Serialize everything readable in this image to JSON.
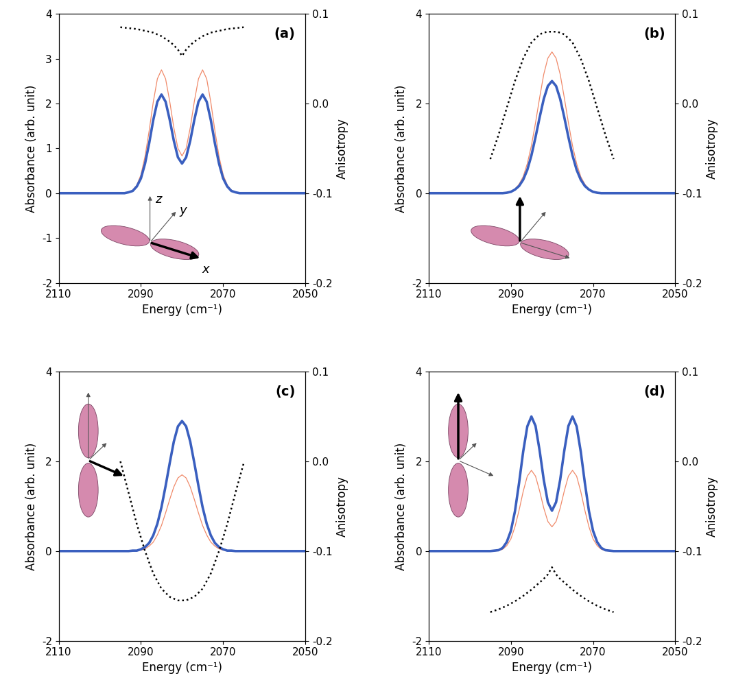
{
  "chart_data": [
    {
      "type": "line",
      "title": "(a)",
      "xlabel": "Energy (cm⁻¹)",
      "ylabel": "Absorbance (arb. unit)",
      "y2label": "Anisotropy",
      "xlim": [
        2110,
        2050
      ],
      "xticks": [
        2110,
        2090,
        2070,
        2050
      ],
      "ylim": [
        -2,
        4
      ],
      "yticks": [
        -2,
        -1,
        0,
        1,
        2,
        3,
        4
      ],
      "y2lim": [
        -0.2,
        0.1
      ],
      "y2ticks": [
        -0.2,
        -0.1,
        0.0,
        0.1
      ],
      "annotations": [
        "z",
        "y",
        "x"
      ],
      "series": [
        {
          "color": "#f08a6a",
          "line_style": "solid",
          "x": [
            2110,
            2096,
            2095,
            2094,
            2093,
            2092,
            2091,
            2090,
            2089,
            2088,
            2087,
            2086,
            2085,
            2084,
            2083,
            2082,
            2081,
            2080,
            2079,
            2078,
            2077,
            2076,
            2075,
            2074,
            2073,
            2072,
            2071,
            2070,
            2069,
            2068,
            2067,
            2066,
            2065,
            2064,
            2050
          ],
          "values": [
            0,
            0,
            0,
            0.01,
            0.02,
            0.07,
            0.18,
            0.41,
            0.82,
            1.39,
            2.03,
            2.55,
            2.75,
            2.55,
            2.05,
            1.46,
            1.0,
            0.83,
            1.0,
            1.46,
            2.05,
            2.55,
            2.75,
            2.55,
            2.03,
            1.39,
            0.82,
            0.41,
            0.18,
            0.07,
            0.02,
            0.01,
            0,
            0,
            0
          ]
        },
        {
          "color": "#3a5fbf",
          "line_style": "solid",
          "x": [
            2110,
            2096,
            2095,
            2094,
            2093,
            2092,
            2091,
            2090,
            2089,
            2088,
            2087,
            2086,
            2085,
            2084,
            2083,
            2082,
            2081,
            2080,
            2079,
            2078,
            2077,
            2076,
            2075,
            2074,
            2073,
            2072,
            2071,
            2070,
            2069,
            2068,
            2067,
            2066,
            2065,
            2064,
            2050
          ],
          "values": [
            0,
            0,
            0,
            0,
            0.02,
            0.05,
            0.15,
            0.33,
            0.66,
            1.11,
            1.63,
            2.04,
            2.2,
            2.04,
            1.64,
            1.17,
            0.8,
            0.66,
            0.8,
            1.17,
            1.64,
            2.04,
            2.2,
            2.04,
            1.63,
            1.11,
            0.66,
            0.33,
            0.15,
            0.05,
            0.02,
            0,
            0,
            0,
            0
          ]
        },
        {
          "color": "#000000",
          "line_style": "dotted",
          "axis": "y2",
          "x": [
            2095,
            2093,
            2091,
            2089,
            2087,
            2085,
            2083,
            2082,
            2081,
            2080,
            2079,
            2078,
            2077,
            2075,
            2073,
            2071,
            2069,
            2067,
            2065
          ],
          "values": [
            0.085,
            0.084,
            0.083,
            0.081,
            0.079,
            0.075,
            0.069,
            0.065,
            0.06,
            0.053,
            0.06,
            0.065,
            0.069,
            0.075,
            0.079,
            0.081,
            0.083,
            0.084,
            0.085
          ]
        }
      ]
    },
    {
      "type": "line",
      "title": "(b)",
      "xlabel": "Energy (cm⁻¹)",
      "ylabel": "Absorbance (arb. unit)",
      "y2label": "Anisotropy",
      "xlim": [
        2110,
        2050
      ],
      "xticks": [
        2110,
        2090,
        2070,
        2050
      ],
      "ylim": [
        -2,
        4
      ],
      "yticks": [
        -2,
        0,
        2,
        4
      ],
      "y2lim": [
        -0.2,
        0.1
      ],
      "y2ticks": [
        -0.2,
        -0.1,
        0.0,
        0.1
      ],
      "series": [
        {
          "color": "#f08a6a",
          "line_style": "solid",
          "x": [
            2110,
            2096,
            2095,
            2094,
            2093,
            2092,
            2091,
            2090,
            2089,
            2088,
            2087,
            2086,
            2085,
            2084,
            2083,
            2082,
            2081,
            2080,
            2079,
            2078,
            2077,
            2076,
            2075,
            2074,
            2073,
            2072,
            2071,
            2070,
            2069,
            2068,
            2067,
            2066,
            2065,
            2064,
            2050
          ],
          "values": [
            0,
            0,
            0,
            0,
            0,
            0.01,
            0.02,
            0.04,
            0.09,
            0.2,
            0.37,
            0.66,
            1.06,
            1.57,
            2.13,
            2.65,
            3.01,
            3.15,
            3.01,
            2.65,
            2.13,
            1.57,
            1.06,
            0.66,
            0.37,
            0.2,
            0.09,
            0.04,
            0.02,
            0.01,
            0,
            0,
            0,
            0,
            0
          ]
        },
        {
          "color": "#3a5fbf",
          "line_style": "solid",
          "x": [
            2110,
            2096,
            2095,
            2094,
            2093,
            2092,
            2091,
            2090,
            2089,
            2088,
            2087,
            2086,
            2085,
            2084,
            2083,
            2082,
            2081,
            2080,
            2079,
            2078,
            2077,
            2076,
            2075,
            2074,
            2073,
            2072,
            2071,
            2070,
            2069,
            2068,
            2067,
            2066,
            2065,
            2064,
            2050
          ],
          "values": [
            0,
            0,
            0,
            0,
            0,
            0,
            0.01,
            0.03,
            0.08,
            0.16,
            0.3,
            0.52,
            0.84,
            1.25,
            1.69,
            2.1,
            2.39,
            2.5,
            2.39,
            2.1,
            1.69,
            1.25,
            0.84,
            0.52,
            0.3,
            0.16,
            0.08,
            0.03,
            0.01,
            0,
            0,
            0,
            0,
            0,
            0
          ]
        },
        {
          "color": "#000000",
          "line_style": "dotted",
          "axis": "y2",
          "x": [
            2095,
            2093,
            2091,
            2089,
            2087,
            2085,
            2083,
            2082,
            2081,
            2080,
            2079,
            2078,
            2077,
            2075,
            2073,
            2071,
            2069,
            2067,
            2065
          ],
          "values": [
            -0.062,
            -0.035,
            -0.005,
            0.025,
            0.05,
            0.068,
            0.077,
            0.079,
            0.08,
            0.08,
            0.08,
            0.079,
            0.077,
            0.068,
            0.05,
            0.025,
            -0.005,
            -0.035,
            -0.062
          ]
        }
      ]
    },
    {
      "type": "line",
      "title": "(c)",
      "xlabel": "Energy (cm⁻¹)",
      "ylabel": "Absorbance (arb. unit)",
      "y2label": "Anisotropy",
      "xlim": [
        2110,
        2050
      ],
      "xticks": [
        2110,
        2090,
        2070,
        2050
      ],
      "ylim": [
        -2,
        4
      ],
      "yticks": [
        -2,
        0,
        2,
        4
      ],
      "y2lim": [
        -0.2,
        0.1
      ],
      "y2ticks": [
        -0.2,
        -0.1,
        0.0,
        0.1
      ],
      "series": [
        {
          "color": "#f08a6a",
          "line_style": "solid",
          "x": [
            2110,
            2096,
            2095,
            2094,
            2093,
            2092,
            2091,
            2090,
            2089,
            2088,
            2087,
            2086,
            2085,
            2084,
            2083,
            2082,
            2081,
            2080,
            2079,
            2078,
            2077,
            2076,
            2075,
            2074,
            2073,
            2072,
            2071,
            2070,
            2069,
            2068,
            2067,
            2066,
            2065,
            2064,
            2050
          ],
          "values": [
            0,
            0,
            0,
            0,
            0,
            0,
            0.01,
            0.02,
            0.05,
            0.11,
            0.2,
            0.36,
            0.57,
            0.85,
            1.15,
            1.43,
            1.63,
            1.7,
            1.63,
            1.43,
            1.15,
            0.85,
            0.57,
            0.36,
            0.2,
            0.11,
            0.05,
            0.02,
            0.01,
            0,
            0,
            0,
            0,
            0,
            0
          ]
        },
        {
          "color": "#3a5fbf",
          "line_style": "solid",
          "x": [
            2110,
            2096,
            2095,
            2094,
            2093,
            2092,
            2091,
            2090,
            2089,
            2088,
            2087,
            2086,
            2085,
            2084,
            2083,
            2082,
            2081,
            2080,
            2079,
            2078,
            2077,
            2076,
            2075,
            2074,
            2073,
            2072,
            2071,
            2070,
            2069,
            2068,
            2067,
            2066,
            2065,
            2064,
            2050
          ],
          "values": [
            0,
            0,
            0,
            0,
            0,
            0.01,
            0.01,
            0.04,
            0.09,
            0.18,
            0.35,
            0.61,
            0.98,
            1.45,
            1.96,
            2.44,
            2.78,
            2.9,
            2.78,
            2.44,
            1.96,
            1.45,
            0.98,
            0.61,
            0.35,
            0.18,
            0.09,
            0.04,
            0.01,
            0.01,
            0,
            0,
            0,
            0,
            0
          ]
        },
        {
          "color": "#000000",
          "line_style": "dotted",
          "axis": "y2",
          "x": [
            2095,
            2093,
            2091,
            2089,
            2087,
            2085,
            2083,
            2082,
            2081,
            2080,
            2079,
            2078,
            2077,
            2075,
            2073,
            2071,
            2069,
            2067,
            2065
          ],
          "values": [
            0.0,
            -0.035,
            -0.07,
            -0.1,
            -0.125,
            -0.142,
            -0.151,
            -0.153,
            -0.155,
            -0.155,
            -0.155,
            -0.153,
            -0.151,
            -0.142,
            -0.125,
            -0.1,
            -0.07,
            -0.035,
            -0.002
          ]
        }
      ]
    },
    {
      "type": "line",
      "title": "(d)",
      "xlabel": "Energy (cm⁻¹)",
      "ylabel": "Absorbance (arb. unit)",
      "y2label": "Anisotropy",
      "xlim": [
        2110,
        2050
      ],
      "xticks": [
        2110,
        2090,
        2070,
        2050
      ],
      "ylim": [
        -2,
        4
      ],
      "yticks": [
        -2,
        0,
        2,
        4
      ],
      "y2lim": [
        -0.2,
        0.1
      ],
      "y2ticks": [
        -0.2,
        -0.1,
        0.0,
        0.1
      ],
      "series": [
        {
          "color": "#f08a6a",
          "line_style": "solid",
          "x": [
            2110,
            2096,
            2095,
            2094,
            2093,
            2092,
            2091,
            2090,
            2089,
            2088,
            2087,
            2086,
            2085,
            2084,
            2083,
            2082,
            2081,
            2080,
            2079,
            2078,
            2077,
            2076,
            2075,
            2074,
            2073,
            2072,
            2071,
            2070,
            2069,
            2068,
            2067,
            2066,
            2065,
            2064,
            2050
          ],
          "values": [
            0,
            0,
            0,
            0,
            0.01,
            0.04,
            0.12,
            0.27,
            0.54,
            0.91,
            1.33,
            1.67,
            1.8,
            1.67,
            1.34,
            0.96,
            0.66,
            0.54,
            0.66,
            0.96,
            1.34,
            1.67,
            1.8,
            1.67,
            1.33,
            0.91,
            0.54,
            0.27,
            0.12,
            0.04,
            0.01,
            0,
            0,
            0,
            0
          ]
        },
        {
          "color": "#3a5fbf",
          "line_style": "solid",
          "x": [
            2110,
            2096,
            2095,
            2094,
            2093,
            2092,
            2091,
            2090,
            2089,
            2088,
            2087,
            2086,
            2085,
            2084,
            2083,
            2082,
            2081,
            2080,
            2079,
            2078,
            2077,
            2076,
            2075,
            2074,
            2073,
            2072,
            2071,
            2070,
            2069,
            2068,
            2067,
            2066,
            2065,
            2064,
            2050
          ],
          "values": [
            0,
            0,
            0,
            0.01,
            0.02,
            0.07,
            0.2,
            0.45,
            0.89,
            1.52,
            2.22,
            2.78,
            3.0,
            2.79,
            2.24,
            1.59,
            1.09,
            0.9,
            1.09,
            1.59,
            2.24,
            2.79,
            3.0,
            2.78,
            2.22,
            1.52,
            0.89,
            0.45,
            0.2,
            0.07,
            0.02,
            0.01,
            0,
            0,
            0
          ]
        },
        {
          "color": "#000000",
          "line_style": "dotted",
          "axis": "y2",
          "x": [
            2095,
            2093,
            2091,
            2089,
            2087,
            2085,
            2083,
            2082,
            2081,
            2080,
            2079,
            2078,
            2077,
            2075,
            2073,
            2071,
            2069,
            2067,
            2065
          ],
          "values": [
            -0.168,
            -0.165,
            -0.161,
            -0.156,
            -0.15,
            -0.143,
            -0.135,
            -0.131,
            -0.126,
            -0.118,
            -0.126,
            -0.131,
            -0.135,
            -0.143,
            -0.15,
            -0.156,
            -0.161,
            -0.165,
            -0.168
          ]
        }
      ]
    }
  ]
}
